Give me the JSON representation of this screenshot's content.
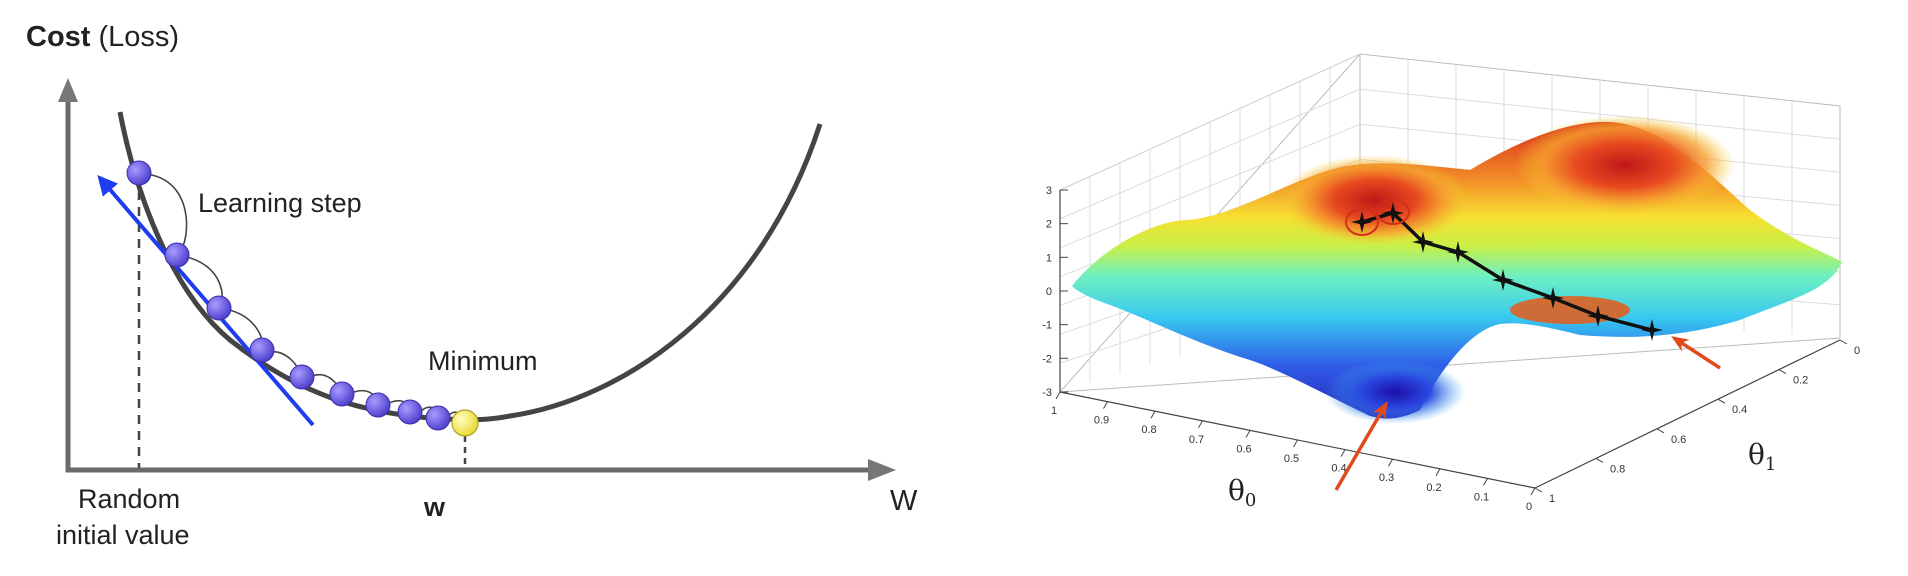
{
  "left": {
    "y_label_bold": "Cost",
    "y_label_rest": " (Loss)",
    "step_label": "Learning step",
    "minimum_label": "Minimum",
    "x_axis_label": "W",
    "w_tick_label": "w",
    "start_label_line1": "Random",
    "start_label_line2": "initial value",
    "colors": {
      "curve": "#444444",
      "ball": "#6b5fe0",
      "min_ball": "#f7f06a",
      "tangent": "#1f3cf0"
    }
  },
  "right": {
    "z_ticks": [
      "3",
      "2",
      "1",
      "0",
      "-1",
      "-2",
      "-3"
    ],
    "theta0_ticks": [
      "1",
      "0.9",
      "0.8",
      "0.7",
      "0.6",
      "0.5",
      "0.4",
      "0.3",
      "0.2",
      "0.1",
      "0"
    ],
    "theta1_ticks": [
      "0",
      "0.2",
      "0.4",
      "0.6",
      "0.8",
      "1"
    ],
    "theta0_label": "θ",
    "theta0_sub": "0",
    "theta1_label": "θ",
    "theta1_sub": "1",
    "colors": {
      "path": "#111111",
      "arrow": "#e04a1a"
    }
  }
}
